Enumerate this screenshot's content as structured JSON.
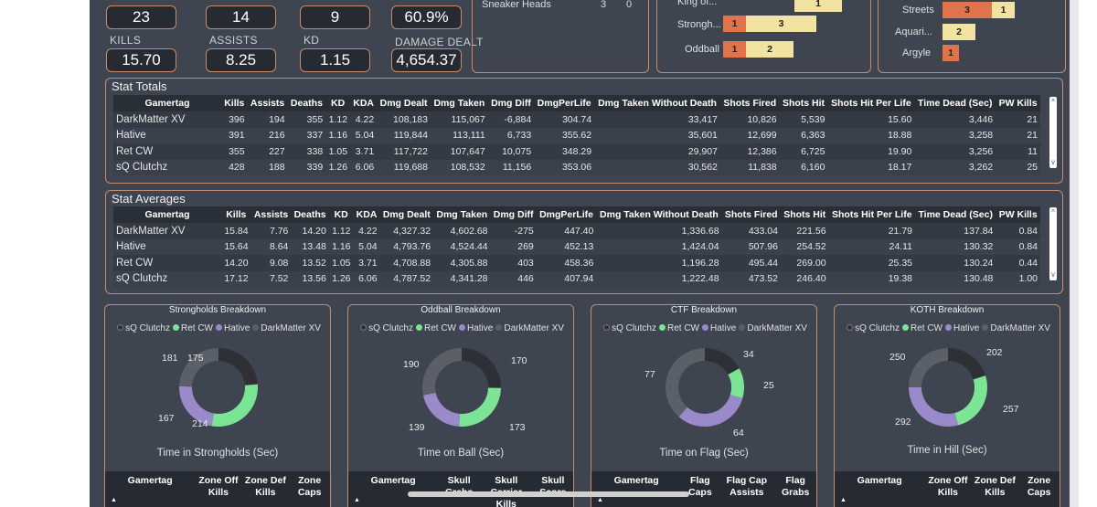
{
  "colors": {
    "sq": "#2e3035",
    "ret": "#7be495",
    "hative": "#9b8ac9",
    "dark": "#5b5f68",
    "orange": "#e0734a",
    "cream": "#f2e3a0"
  },
  "kpis": [
    {
      "label": "",
      "value": "23"
    },
    {
      "label": "",
      "value": "14"
    },
    {
      "label": "",
      "value": "9"
    },
    {
      "label": "",
      "value": "60.9%"
    },
    {
      "label": "KILLS",
      "value": "15.70"
    },
    {
      "label": "ASSISTS",
      "value": "8.25"
    },
    {
      "label": "KD",
      "value": "1.15"
    },
    {
      "label": "DAMAGE DEALT",
      "value": "4,654.37"
    }
  ],
  "top_mini_table": {
    "name": "Sneaker Heads",
    "a": "3",
    "b": "0"
  },
  "modes_bar": {
    "rows": [
      {
        "label": "King of...",
        "a": "",
        "b": "1"
      },
      {
        "label": "Strongh...",
        "a": "1",
        "b": "3"
      },
      {
        "label": "Oddball",
        "a": "1",
        "b": "2"
      }
    ]
  },
  "maps_bar": {
    "rows": [
      {
        "label": "Streets",
        "a": "3",
        "b": "1"
      },
      {
        "label": "Aquari...",
        "a": "",
        "b": "2"
      },
      {
        "label": "Argyle",
        "a": "1",
        "b": ""
      }
    ]
  },
  "stat_totals": {
    "title": "Stat Totals",
    "columns": [
      "Gamertag",
      "Kills",
      "Assists",
      "Deaths",
      "KD",
      "KDA",
      "Dmg Dealt",
      "Dmg Taken",
      "Dmg Diff",
      "DmgPerLife",
      "Dmg Taken Without Death",
      "Shots Fired",
      "Shots Hit",
      "Shots Hit Per Life",
      "Time Dead (Sec)",
      "PW Kills"
    ],
    "rows": [
      [
        "DarkMatter XV",
        "396",
        "194",
        "355",
        "1.12",
        "4.22",
        "108,183",
        "115,067",
        "-6,884",
        "304.74",
        "33,417",
        "10,826",
        "5,539",
        "15.60",
        "3,446",
        "21"
      ],
      [
        "Hative",
        "391",
        "216",
        "337",
        "1.16",
        "5.04",
        "119,844",
        "113,111",
        "6,733",
        "355.62",
        "35,601",
        "12,699",
        "6,363",
        "18.88",
        "3,258",
        "21"
      ],
      [
        "Ret CW",
        "355",
        "227",
        "338",
        "1.05",
        "3.71",
        "117,722",
        "107,647",
        "10,075",
        "348.29",
        "29,907",
        "12,386",
        "6,725",
        "19.90",
        "3,256",
        "11"
      ],
      [
        "sQ Clutchz",
        "428",
        "188",
        "339",
        "1.26",
        "6.06",
        "119,688",
        "108,532",
        "11,156",
        "353.06",
        "30,562",
        "11,838",
        "6,160",
        "18.17",
        "3,262",
        "25"
      ]
    ]
  },
  "stat_averages": {
    "title": "Stat Averages",
    "columns": [
      "Gamertag",
      "Kills",
      "Assists",
      "Deaths",
      "KD",
      "KDA",
      "Dmg Dealt",
      "Dmg Taken",
      "Dmg Diff",
      "DmgPerLife",
      "Dmg Taken Without Death",
      "Shots Fired",
      "Shots Hit",
      "Shots Hit Per Life",
      "Time Dead (Sec)",
      "PW Kills"
    ],
    "rows": [
      [
        "DarkMatter XV",
        "15.84",
        "7.76",
        "14.20",
        "1.12",
        "4.22",
        "4,327.32",
        "4,602.68",
        "-275",
        "447.40",
        "1,336.68",
        "433.04",
        "221.56",
        "21.79",
        "137.84",
        "0.84"
      ],
      [
        "Hative",
        "15.64",
        "8.64",
        "13.48",
        "1.16",
        "5.04",
        "4,793.76",
        "4,524.44",
        "269",
        "452.13",
        "1,424.04",
        "507.96",
        "254.52",
        "24.11",
        "130.32",
        "0.84"
      ],
      [
        "Ret CW",
        "14.20",
        "9.08",
        "13.52",
        "1.05",
        "3.71",
        "4,708.88",
        "4,305.88",
        "403",
        "458.36",
        "1,196.28",
        "495.44",
        "269.00",
        "25.35",
        "130.24",
        "0.44"
      ],
      [
        "sQ Clutchz",
        "17.12",
        "7.52",
        "13.56",
        "1.26",
        "6.06",
        "4,787.52",
        "4,341.28",
        "446",
        "407.94",
        "1,222.48",
        "473.52",
        "246.40",
        "19.38",
        "130.48",
        "1.00"
      ]
    ]
  },
  "legend": [
    "sQ Clutchz",
    "Ret CW",
    "Hative",
    "DarkMatter XV"
  ],
  "chart_data": [
    {
      "type": "pie",
      "title": "Strongholds Breakdown",
      "caption": "Time in Strongholds (Sec)",
      "categories": [
        "sQ Clutchz",
        "Ret CW",
        "Hative",
        "DarkMatter XV"
      ],
      "values": [
        175,
        214,
        167,
        181
      ],
      "table_cols": [
        "Gamertag",
        "Zone Off Kills",
        "Zone Def Kills",
        "Zone Caps"
      ]
    },
    {
      "type": "pie",
      "title": "Oddball Breakdown",
      "caption": "Time on Ball (Sec)",
      "categories": [
        "sQ Clutchz",
        "Ret CW",
        "Hative",
        "DarkMatter XV"
      ],
      "values": [
        170,
        173,
        139,
        190
      ],
      "table_cols": [
        "Gamertag",
        "Skull Grabs",
        "Skull Carrier Kills",
        "Skull Score"
      ]
    },
    {
      "type": "pie",
      "title": "CTF Breakdown",
      "caption": "Time on Flag (Sec)",
      "categories": [
        "sQ Clutchz",
        "Ret CW",
        "Hative",
        "DarkMatter XV"
      ],
      "values": [
        34,
        25,
        64,
        77
      ],
      "table_cols": [
        "Gamertag",
        "Flag Caps",
        "Flag Cap Assists",
        "Flag Grabs"
      ]
    },
    {
      "type": "pie",
      "title": "KOTH Breakdown",
      "caption": "Time in Hill (Sec)",
      "categories": [
        "sQ Clutchz",
        "Ret CW",
        "Hative",
        "DarkMatter XV"
      ],
      "values": [
        202,
        257,
        292,
        250
      ],
      "table_cols": [
        "Gamertag",
        "Zone Off Kills",
        "Zone Def Kills",
        "Zone Caps"
      ]
    }
  ]
}
